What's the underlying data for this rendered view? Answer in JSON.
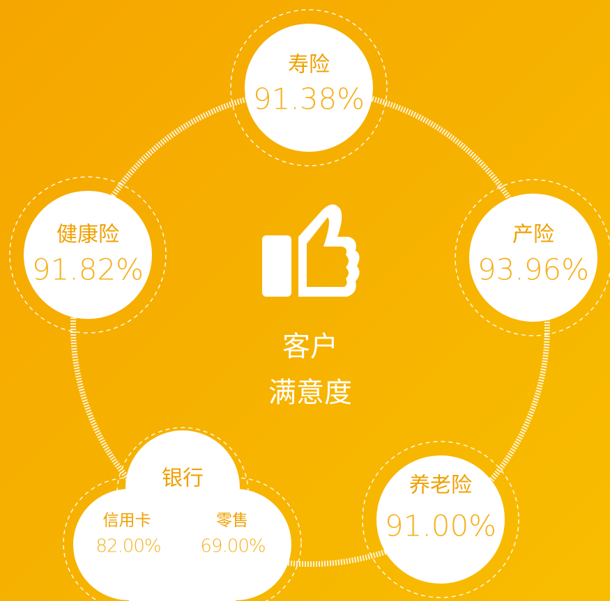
{
  "center": {
    "line1": "客户",
    "line2": "满意度"
  },
  "nodes": [
    {
      "label": "寿险",
      "value": "91.38%"
    },
    {
      "label": "产险",
      "value": "93.96%"
    },
    {
      "label": "养老险",
      "value": "91.00%"
    },
    {
      "label": "健康险",
      "value": "91.82%"
    }
  ],
  "bank": {
    "label": "银行",
    "items": [
      {
        "label": "信用卡",
        "value": "82.00%"
      },
      {
        "label": "零售",
        "value": "69.00%"
      }
    ]
  }
}
